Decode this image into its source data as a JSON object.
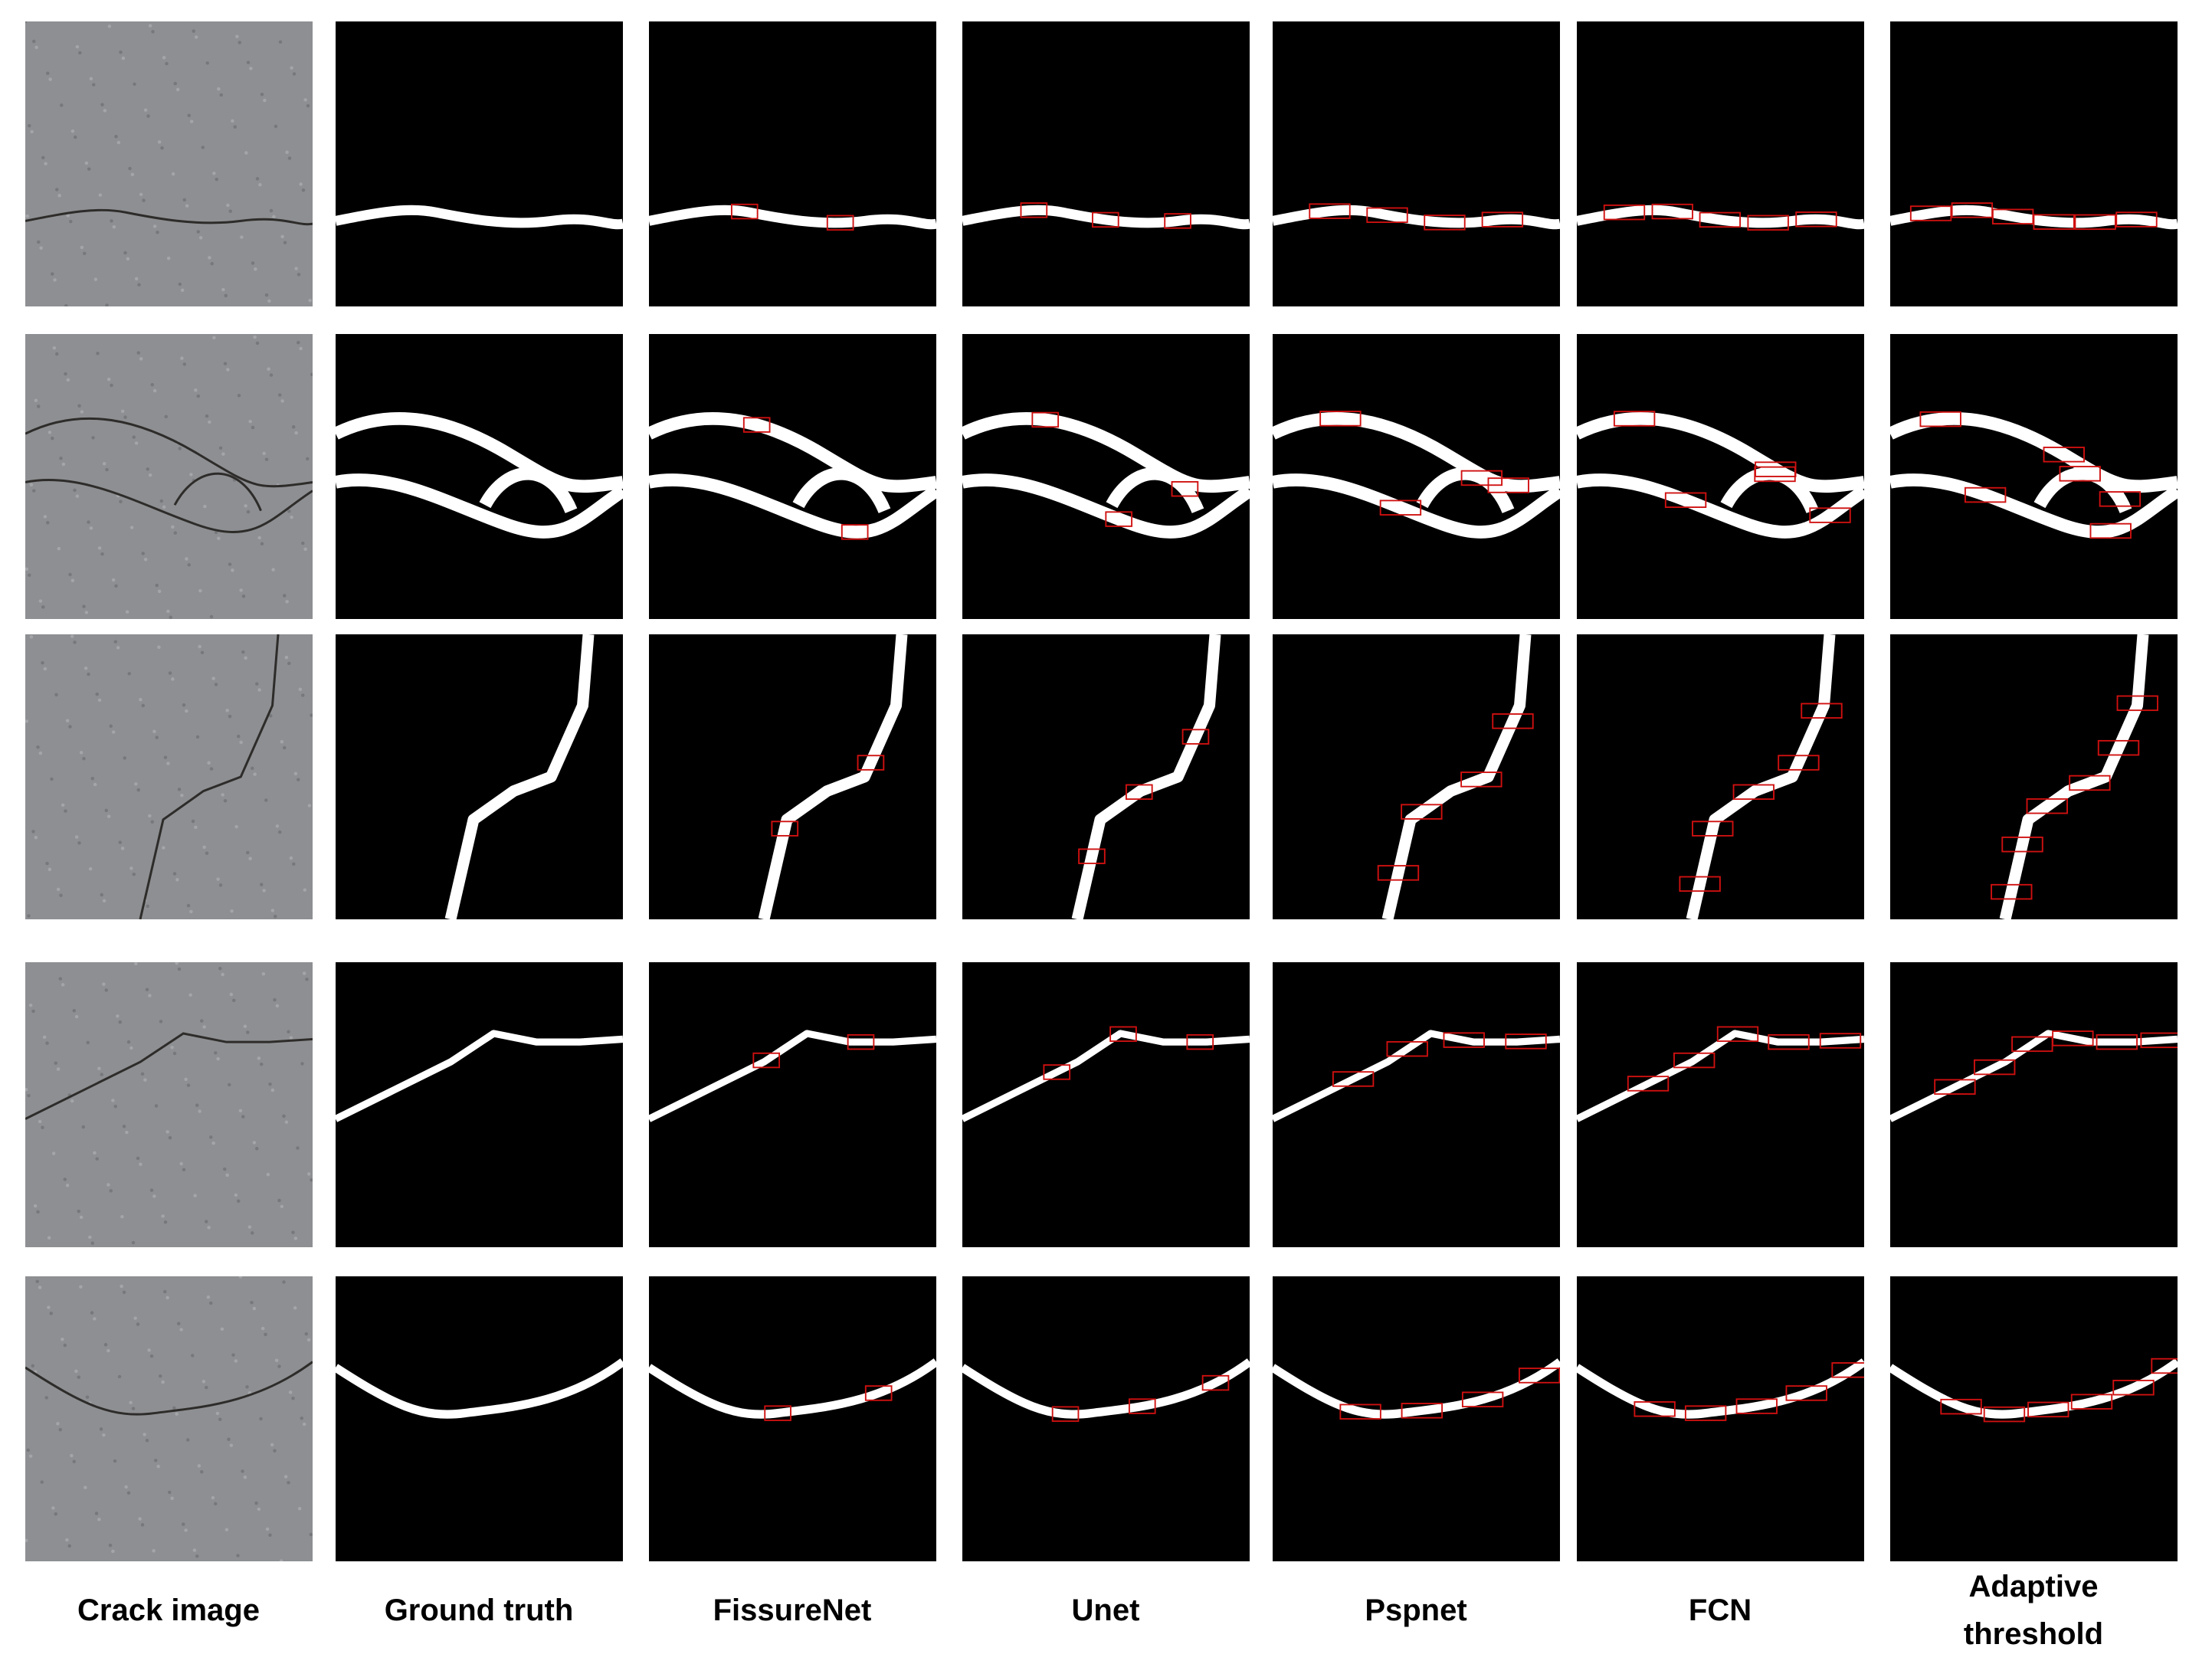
{
  "columns": [
    "Crack image",
    "Ground truth",
    "FissureNet",
    "Unet",
    "Pspnet",
    "FCN",
    "Adaptive threshold"
  ]
}
